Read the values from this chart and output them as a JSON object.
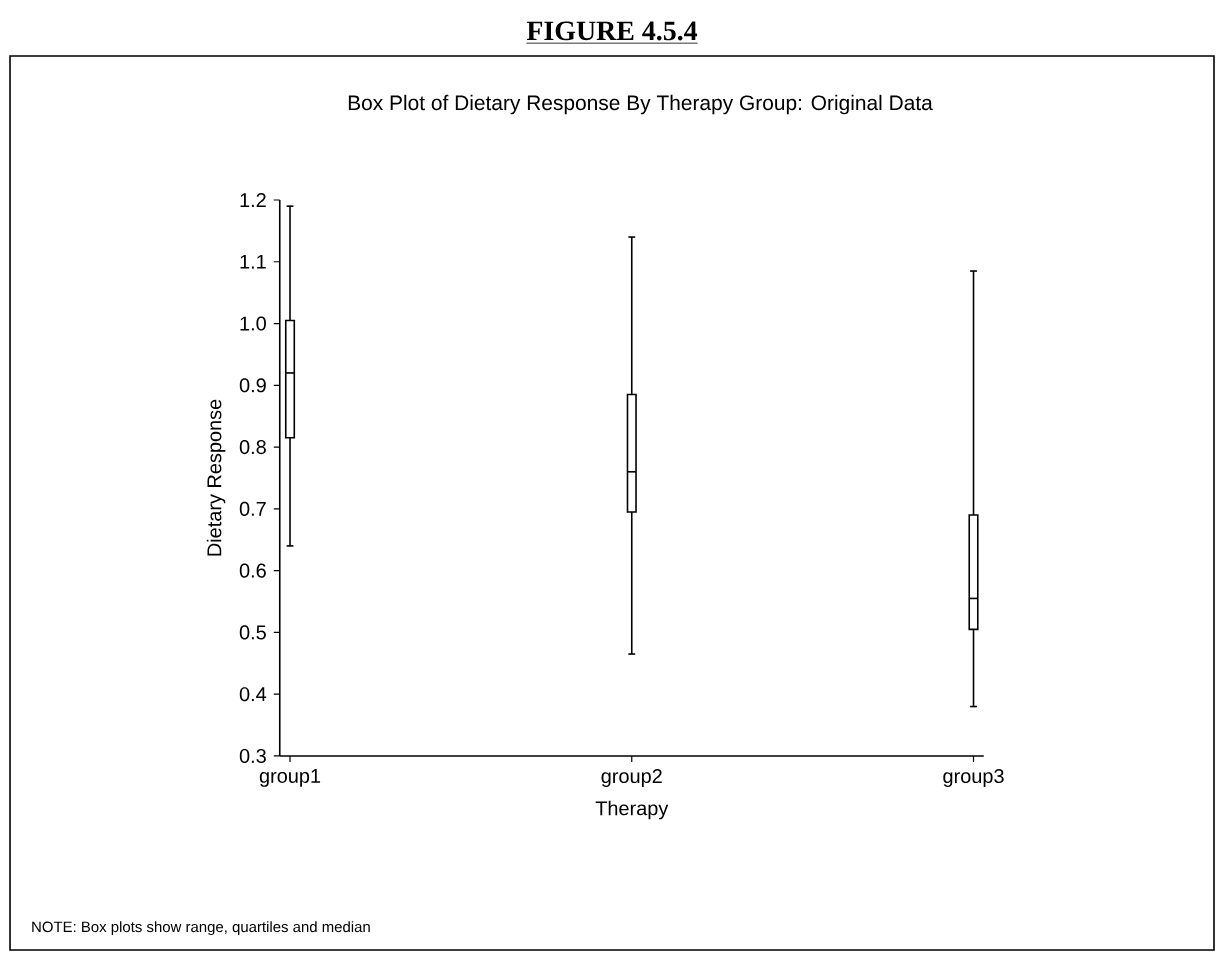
{
  "chart_data": {
    "type": "box",
    "title": "Box Plot of Dietary Response By Therapy Group: Original Data",
    "xlabel": "Therapy",
    "ylabel": "Dietary Response",
    "annotations": [
      "FIGURE 4.5.4",
      "NOTE: Box plots show range, quartiles and median"
    ],
    "categories": [
      "group1",
      "group2",
      "group3"
    ],
    "color": "#000000",
    "boxes": [
      {
        "low": 0.64,
        "q1": 0.815,
        "median": 0.92,
        "q3": 1.005,
        "high": 1.19
      },
      {
        "low": 0.465,
        "q1": 0.695,
        "median": 0.76,
        "q3": 0.885,
        "high": 1.14
      },
      {
        "low": 0.38,
        "q1": 0.505,
        "median": 0.555,
        "q3": 0.69,
        "high": 1.085
      }
    ],
    "ylim": [
      0.3,
      1.2
    ],
    "yticks": [
      0.3,
      0.4,
      0.5,
      0.6,
      0.7,
      0.8,
      0.9,
      {
        "value": 1.0,
        "label": "1.0"
      },
      1.1,
      1.2
    ]
  }
}
